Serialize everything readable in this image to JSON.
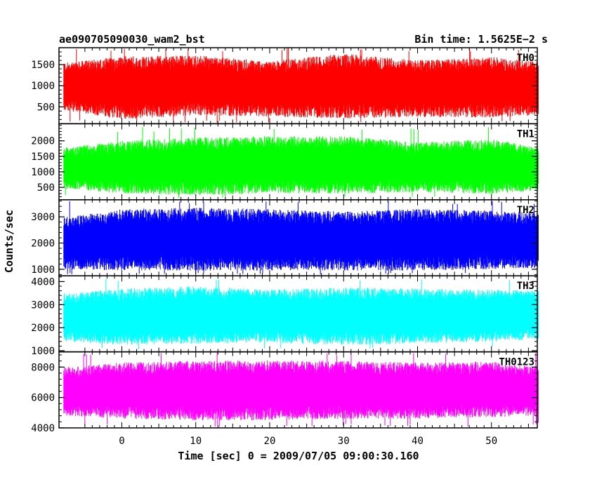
{
  "header": {
    "title": "ae090705090030_wam2_bst",
    "bin_time": "Bin time: 1.5625E−2 s"
  },
  "chart_data": [
    {
      "type": "area",
      "name": "TH0",
      "color": "#ff0000",
      "x_range": [
        -8.5,
        56.2
      ],
      "ylim": [
        100,
        1900
      ],
      "yticks": [
        500,
        1000,
        1500
      ],
      "tick_labels": [
        "500",
        "1000",
        "1500"
      ],
      "x": [
        -7,
        0,
        10,
        20,
        30,
        40,
        50,
        56
      ],
      "y_upper": [
        1550,
        1700,
        1720,
        1580,
        1760,
        1600,
        1680,
        1580
      ],
      "y_lower": [
        400,
        200,
        300,
        270,
        220,
        260,
        250,
        300
      ],
      "peak": 1900,
      "dip": 120
    },
    {
      "type": "area",
      "name": "TH1",
      "color": "#00ff00",
      "x_range": [
        -8.5,
        56.2
      ],
      "ylim": [
        100,
        2550
      ],
      "yticks": [
        500,
        1000,
        1500,
        2000
      ],
      "tick_labels": [
        "500",
        "1000",
        "1500",
        "2000"
      ],
      "x": [
        -7,
        0,
        10,
        20,
        30,
        40,
        50,
        56
      ],
      "y_upper": [
        1800,
        2000,
        2100,
        2150,
        2150,
        1950,
        2050,
        1800
      ],
      "y_lower": [
        450,
        300,
        250,
        300,
        300,
        350,
        280,
        400
      ],
      "peak": 2450,
      "dip": 150
    },
    {
      "type": "area",
      "name": "TH2",
      "color": "#0000ff",
      "x_range": [
        -8.5,
        56.2
      ],
      "ylim": [
        750,
        3650
      ],
      "yticks": [
        1000,
        2000,
        3000
      ],
      "tick_labels": [
        "1000",
        "2000",
        "3000"
      ],
      "x": [
        -7,
        0,
        10,
        20,
        30,
        40,
        50,
        56
      ],
      "y_upper": [
        3000,
        3300,
        3350,
        3300,
        3200,
        3300,
        3250,
        3150
      ],
      "y_lower": [
        1000,
        950,
        950,
        950,
        950,
        950,
        1000,
        1050
      ],
      "peak": 3600,
      "dip": 800
    },
    {
      "type": "area",
      "name": "TH3",
      "color": "#00ffff",
      "x_range": [
        -8.5,
        56.2
      ],
      "ylim": [
        950,
        4250
      ],
      "yticks": [
        1000,
        2000,
        3000,
        4000
      ],
      "tick_labels": [
        "1000",
        "2000",
        "3000",
        "4000"
      ],
      "x": [
        -7,
        0,
        10,
        20,
        30,
        40,
        50,
        56
      ],
      "y_upper": [
        3500,
        3700,
        3800,
        3650,
        3750,
        3700,
        3650,
        3600
      ],
      "y_lower": [
        1400,
        1250,
        1300,
        1350,
        1250,
        1300,
        1400,
        1500
      ],
      "peak": 4200,
      "dip": 1050
    },
    {
      "type": "area",
      "name": "TH0123",
      "color": "#ff00ff",
      "x_range": [
        -8.5,
        56.2
      ],
      "ylim": [
        4000,
        9000
      ],
      "yticks": [
        4000,
        6000,
        8000
      ],
      "tick_labels": [
        "4000",
        "6000",
        "8000"
      ],
      "x": [
        -7,
        0,
        10,
        20,
        30,
        40,
        50,
        56
      ],
      "y_upper": [
        8000,
        8300,
        8400,
        8450,
        8400,
        8300,
        8350,
        8000
      ],
      "y_lower": [
        4800,
        4600,
        4500,
        4500,
        4600,
        4600,
        4700,
        4800
      ],
      "peak": 8950,
      "dip": 4050
    }
  ],
  "x_axis": {
    "ticks": [
      0,
      10,
      20,
      30,
      40,
      50
    ],
    "tick_labels": [
      "0",
      "10",
      "20",
      "30",
      "40",
      "50"
    ],
    "label": "Time [sec] 0 = 2009/07/05 09:00:30.160"
  },
  "y_axis": {
    "label": "Counts/sec"
  }
}
